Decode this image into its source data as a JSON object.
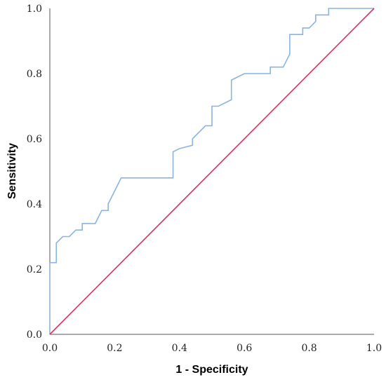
{
  "chart_data": {
    "type": "line",
    "title": "",
    "xlabel": "1 - Specificity",
    "ylabel": "Sensitivity",
    "xlim": [
      0,
      1
    ],
    "ylim": [
      0,
      1
    ],
    "x_ticks": [
      "0.0",
      "0.2",
      "0.4",
      "0.6",
      "0.8",
      "1.0"
    ],
    "y_ticks": [
      "0.0",
      "0.2",
      "0.4",
      "0.6",
      "0.8",
      "1.0"
    ],
    "grid": false,
    "legend": "none",
    "series": [
      {
        "color": "#8ab4e3",
        "x": [
          0.0,
          0.0,
          0.02,
          0.02,
          0.04,
          0.06,
          0.08,
          0.1,
          0.1,
          0.14,
          0.16,
          0.18,
          0.18,
          0.22,
          0.26,
          0.3,
          0.38,
          0.38,
          0.4,
          0.44,
          0.44,
          0.48,
          0.5,
          0.5,
          0.52,
          0.54,
          0.56,
          0.56,
          0.58,
          0.6,
          0.64,
          0.68,
          0.68,
          0.72,
          0.74,
          0.74,
          0.78,
          0.78,
          0.8,
          0.82,
          0.82,
          0.86,
          0.86,
          1.0
        ],
        "y": [
          0.0,
          0.22,
          0.22,
          0.28,
          0.3,
          0.3,
          0.32,
          0.32,
          0.34,
          0.34,
          0.38,
          0.38,
          0.4,
          0.48,
          0.48,
          0.48,
          0.48,
          0.56,
          0.57,
          0.58,
          0.6,
          0.64,
          0.64,
          0.7,
          0.7,
          0.71,
          0.72,
          0.78,
          0.79,
          0.8,
          0.8,
          0.8,
          0.82,
          0.82,
          0.86,
          0.92,
          0.92,
          0.94,
          0.94,
          0.96,
          0.98,
          0.98,
          1.0,
          1.0
        ]
      },
      {
        "color": "#e0315a",
        "x": [
          0.0,
          1.0
        ],
        "y": [
          0.0,
          1.0
        ]
      }
    ]
  }
}
